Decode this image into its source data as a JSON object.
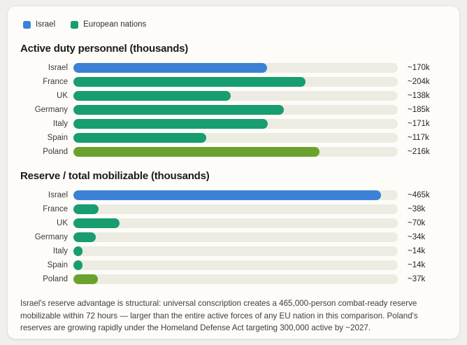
{
  "colors": {
    "page_bg": "#f0efed",
    "card_bg": "#fdfcf8",
    "card_border": "#e3e2dd",
    "track": "#edece3",
    "israel_blue": "#3b82d6",
    "europe_green": "#189d70",
    "poland_green": "#6ba22d"
  },
  "legend": [
    {
      "label": "Israel",
      "color_key": "israel_blue"
    },
    {
      "label": "European nations",
      "color_key": "europe_green"
    }
  ],
  "chart_data": [
    {
      "type": "bar",
      "orientation": "horizontal",
      "title": "Active duty personnel (thousands)",
      "scale_max": 285,
      "categories": [
        "Israel",
        "France",
        "UK",
        "Germany",
        "Italy",
        "Spain",
        "Poland"
      ],
      "values": [
        170,
        204,
        138,
        185,
        171,
        117,
        216
      ],
      "value_labels": [
        "~170k",
        "~204k",
        "~138k",
        "~185k",
        "~171k",
        "~117k",
        "~216k"
      ],
      "bar_colors": [
        "israel_blue",
        "europe_green",
        "europe_green",
        "europe_green",
        "europe_green",
        "europe_green",
        "poland_green"
      ]
    },
    {
      "type": "bar",
      "orientation": "horizontal",
      "title": "Reserve / total mobilizable (thousands)",
      "scale_max": 490,
      "categories": [
        "Israel",
        "France",
        "UK",
        "Germany",
        "Italy",
        "Spain",
        "Poland"
      ],
      "values": [
        465,
        38,
        70,
        34,
        14,
        14,
        37
      ],
      "value_labels": [
        "~465k",
        "~38k",
        "~70k",
        "~34k",
        "~14k",
        "~14k",
        "~37k"
      ],
      "bar_colors": [
        "israel_blue",
        "europe_green",
        "europe_green",
        "europe_green",
        "europe_green",
        "europe_green",
        "poland_green"
      ]
    }
  ],
  "footer": {
    "text": "Israel's reserve advantage is structural: universal conscription creates a 465,000-person combat-ready reserve mobilizable within 72 hours — larger than the entire active forces of any EU nation in this comparison. Poland's reserves are growing rapidly under the Homeland Defense Act targeting 300,000 active by ~2027."
  }
}
